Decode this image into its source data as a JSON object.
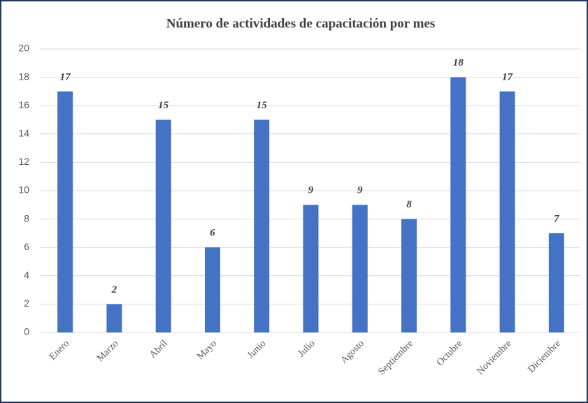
{
  "chart_data": {
    "type": "bar",
    "title": "Número de actividades de capacitación por mes",
    "categories": [
      "Enero",
      "Marzo",
      "Abril",
      "Mayo",
      "Junio",
      "Julio",
      "Agosto",
      "Septiembre",
      "Octubre",
      "Noviembre",
      "Diciembre"
    ],
    "values": [
      17,
      2,
      15,
      6,
      15,
      9,
      9,
      8,
      18,
      17,
      7
    ],
    "color": "#4472c4",
    "ylim": [
      0,
      20
    ],
    "yticks": [
      0,
      2,
      4,
      6,
      8,
      10,
      12,
      14,
      16,
      18,
      20
    ],
    "grid": true
  }
}
